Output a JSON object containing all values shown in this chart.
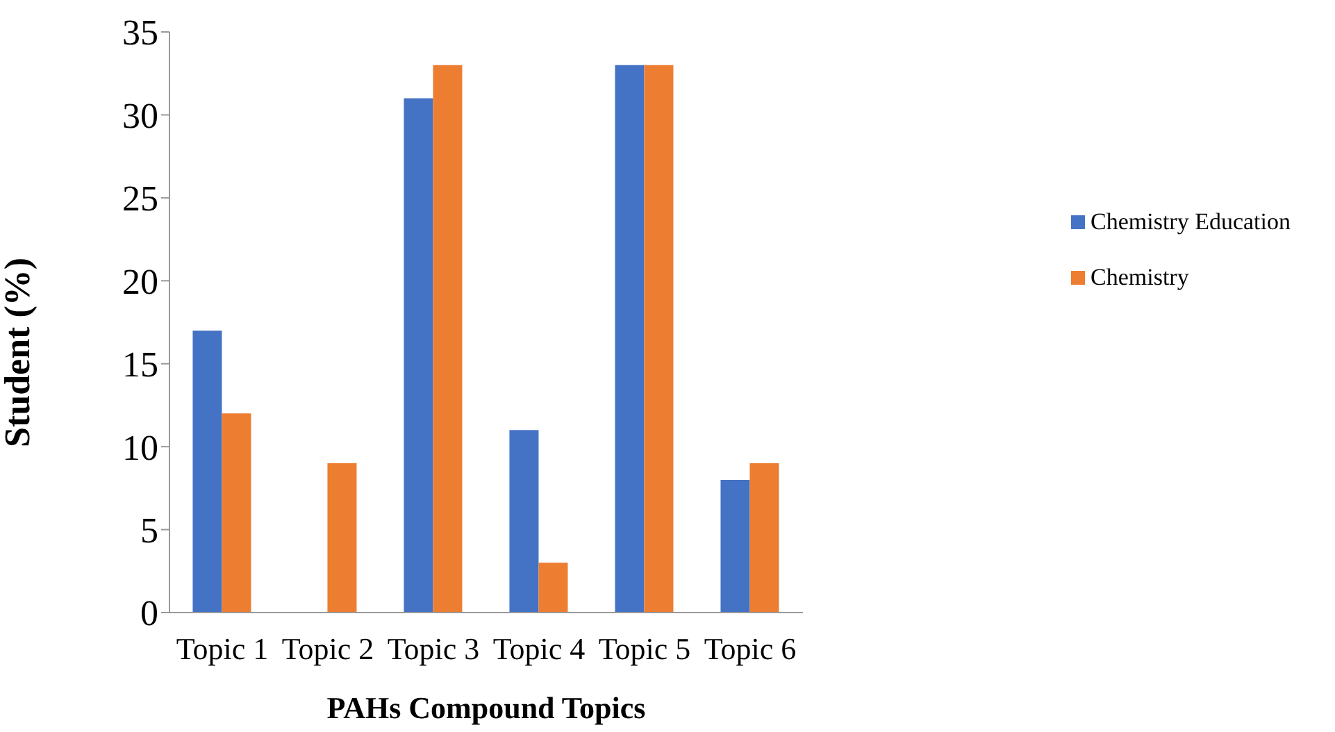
{
  "chart_data": {
    "type": "bar",
    "xlabel": "PAHs Compound Topics",
    "ylabel": "Student (%)",
    "categories": [
      "Topic 1",
      "Topic 2",
      "Topic 3",
      "Topic 4",
      "Topic 5",
      "Topic 6"
    ],
    "series": [
      {
        "name": "Chemistry Education",
        "color": "#4472c4",
        "values": [
          17,
          0,
          31,
          11,
          33,
          8
        ]
      },
      {
        "name": "Chemistry",
        "color": "#ed7d31",
        "values": [
          12,
          9,
          33,
          3,
          33,
          9
        ]
      }
    ],
    "ylim": [
      0,
      35
    ],
    "yticks": [
      0,
      5,
      10,
      15,
      20,
      25,
      30,
      35
    ],
    "grid": false,
    "legend": "right"
  }
}
